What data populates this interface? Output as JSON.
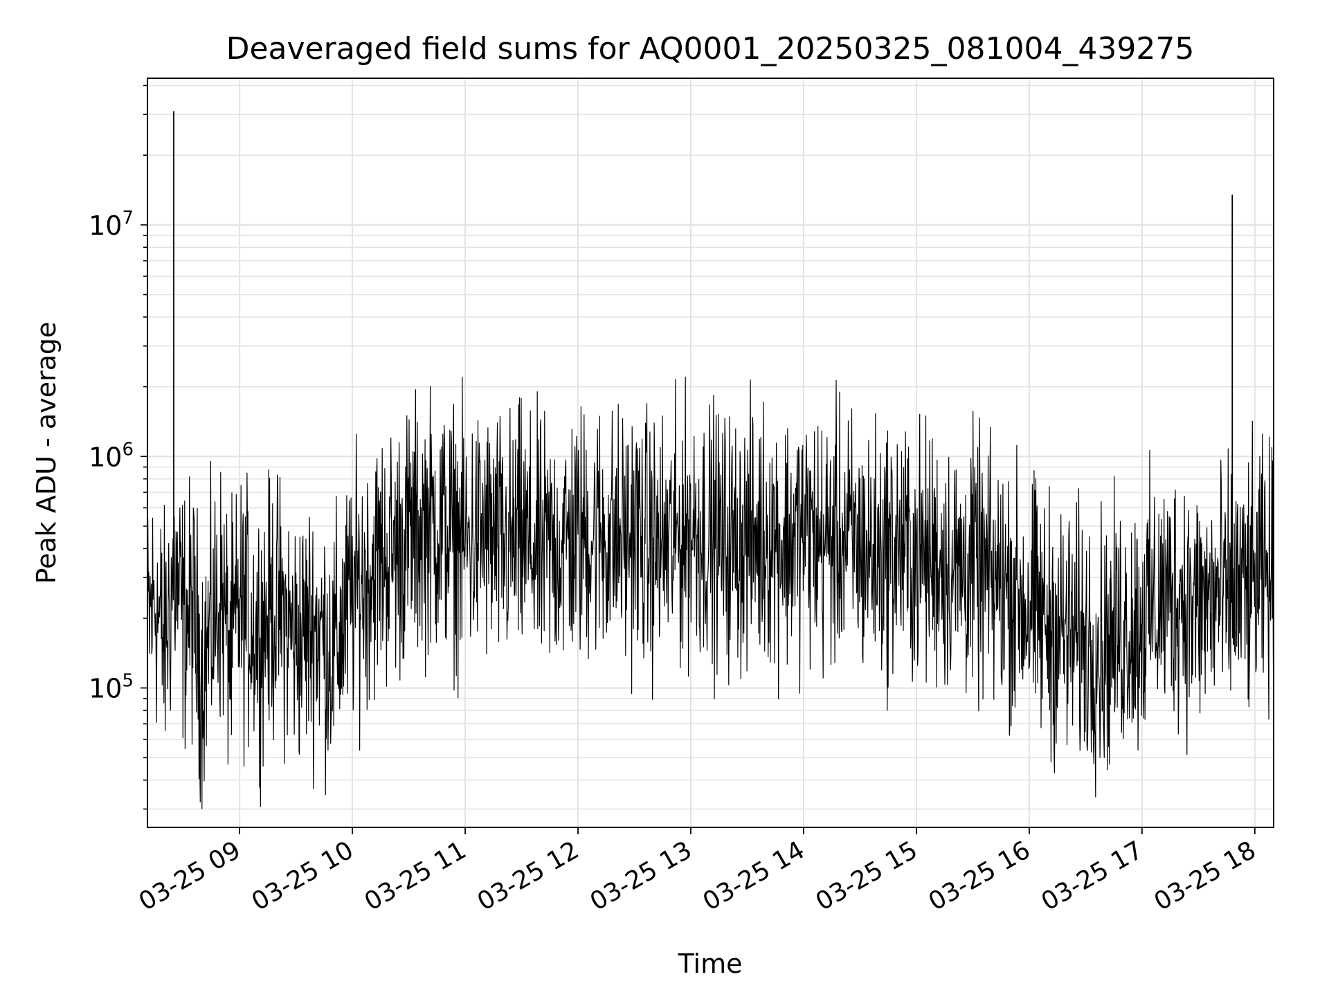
{
  "colors": {
    "background": "#ffffff",
    "line": "#000000",
    "grid": "#e3e3e3",
    "axes": "#000000"
  },
  "chart_data": {
    "type": "line",
    "title": "Deaveraged field sums for AQ0001_20250325_081004_439275",
    "xlabel": "Time",
    "ylabel": "Peak ADU - average",
    "y_scale": "log",
    "xlim": [
      "2025-03-25 08:11",
      "2025-03-25 18:10"
    ],
    "ylim": [
      25000,
      43000000
    ],
    "grid": true,
    "x_ticks": [
      {
        "t": "2025-03-25 09:00",
        "label": "03-25 09"
      },
      {
        "t": "2025-03-25 10:00",
        "label": "03-25 10"
      },
      {
        "t": "2025-03-25 11:00",
        "label": "03-25 11"
      },
      {
        "t": "2025-03-25 12:00",
        "label": "03-25 12"
      },
      {
        "t": "2025-03-25 13:00",
        "label": "03-25 13"
      },
      {
        "t": "2025-03-25 14:00",
        "label": "03-25 14"
      },
      {
        "t": "2025-03-25 15:00",
        "label": "03-25 15"
      },
      {
        "t": "2025-03-25 16:00",
        "label": "03-25 16"
      },
      {
        "t": "2025-03-25 17:00",
        "label": "03-25 17"
      },
      {
        "t": "2025-03-25 18:00",
        "label": "03-25 18"
      }
    ],
    "y_ticks": [
      {
        "value": 100000,
        "base": "10",
        "exp": "5"
      },
      {
        "value": 1000000,
        "base": "10",
        "exp": "6"
      },
      {
        "value": 10000000,
        "base": "10",
        "exp": "7"
      }
    ],
    "series": [
      {
        "x": [
          "2025-03-25 08:11",
          "2025-03-25 08:15",
          "2025-03-25 08:20",
          "2025-03-25 08:25",
          "2025-03-25 08:30",
          "2025-03-25 08:35",
          "2025-03-25 08:40",
          "2025-03-25 08:45",
          "2025-03-25 08:50",
          "2025-03-25 08:55",
          "2025-03-25 09:00",
          "2025-03-25 09:10",
          "2025-03-25 09:20",
          "2025-03-25 09:30",
          "2025-03-25 09:40",
          "2025-03-25 09:50",
          "2025-03-25 10:00",
          "2025-03-25 10:10",
          "2025-03-25 10:20",
          "2025-03-25 10:30",
          "2025-03-25 10:40",
          "2025-03-25 10:50",
          "2025-03-25 11:00",
          "2025-03-25 11:10",
          "2025-03-25 11:20",
          "2025-03-25 11:30",
          "2025-03-25 11:40",
          "2025-03-25 11:50",
          "2025-03-25 12:00",
          "2025-03-25 12:10",
          "2025-03-25 12:20",
          "2025-03-25 12:30",
          "2025-03-25 12:40",
          "2025-03-25 12:50",
          "2025-03-25 13:00",
          "2025-03-25 13:10",
          "2025-03-25 13:20",
          "2025-03-25 13:30",
          "2025-03-25 13:40",
          "2025-03-25 13:50",
          "2025-03-25 14:00",
          "2025-03-25 14:10",
          "2025-03-25 14:20",
          "2025-03-25 14:30",
          "2025-03-25 14:40",
          "2025-03-25 14:50",
          "2025-03-25 15:00",
          "2025-03-25 15:10",
          "2025-03-25 15:20",
          "2025-03-25 15:30",
          "2025-03-25 15:40",
          "2025-03-25 15:50",
          "2025-03-25 16:00",
          "2025-03-25 16:10",
          "2025-03-25 16:20",
          "2025-03-25 16:30",
          "2025-03-25 16:40",
          "2025-03-25 16:50",
          "2025-03-25 17:00",
          "2025-03-25 17:10",
          "2025-03-25 17:20",
          "2025-03-25 17:30",
          "2025-03-25 17:40",
          "2025-03-25 17:45",
          "2025-03-25 17:50",
          "2025-03-25 17:55",
          "2025-03-25 18:00",
          "2025-03-25 18:05",
          "2025-03-25 18:10"
        ],
        "y": [
          180000,
          250000,
          150000,
          320000,
          200000,
          210000,
          120000,
          180000,
          260000,
          140000,
          220000,
          180000,
          230000,
          160000,
          190000,
          140000,
          250000,
          330000,
          380000,
          450000,
          520000,
          480000,
          420000,
          460000,
          400000,
          440000,
          380000,
          420000,
          450000,
          480000,
          430000,
          470000,
          400000,
          420000,
          500000,
          460000,
          420000,
          440000,
          470000,
          430000,
          480000,
          420000,
          450000,
          400000,
          380000,
          410000,
          360000,
          380000,
          320000,
          340000,
          290000,
          270000,
          220000,
          190000,
          170000,
          160000,
          150000,
          180000,
          200000,
          240000,
          260000,
          220000,
          250000,
          230000,
          270000,
          260000,
          280000,
          300000,
          290000
        ]
      }
    ],
    "annotations": [
      {
        "x": "2025-03-25 08:25",
        "y": 31000000
      },
      {
        "x": "2025-03-25 17:48",
        "y": 13500000
      }
    ]
  }
}
